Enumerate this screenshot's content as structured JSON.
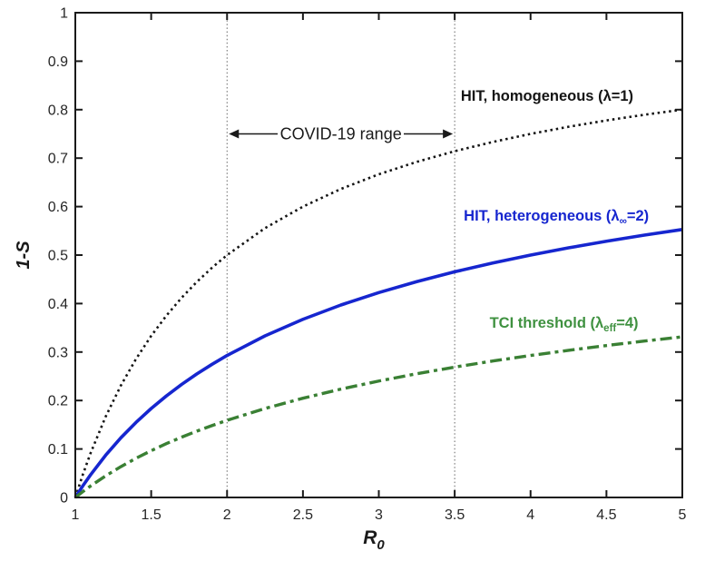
{
  "chart_data": {
    "type": "line",
    "title": "",
    "xlabel": "R",
    "xlabel_sub": "0",
    "ylabel": "1-S",
    "xlim": [
      1,
      5
    ],
    "ylim": [
      0,
      1
    ],
    "grid": false,
    "legend_position": "none (inline curve labels)",
    "xticks": [
      1,
      1.5,
      2,
      2.5,
      3,
      3.5,
      4,
      4.5,
      5
    ],
    "xtick_labels": [
      "1",
      "1.5",
      "2",
      "2.5",
      "3",
      "3.5",
      "4",
      "4.5",
      "5"
    ],
    "yticks": [
      0,
      0.1,
      0.2,
      0.3,
      0.4,
      0.5,
      0.6,
      0.7,
      0.8,
      0.9,
      1
    ],
    "ytick_labels": [
      "0",
      "0.1",
      "0.2",
      "0.3",
      "0.4",
      "0.5",
      "0.6",
      "0.7",
      "0.8",
      "0.9",
      "1"
    ],
    "x": [
      1,
      1.05,
      1.1,
      1.2,
      1.3,
      1.4,
      1.5,
      1.6,
      1.7,
      1.8,
      1.9,
      2.0,
      2.25,
      2.5,
      2.75,
      3.0,
      3.25,
      3.5,
      3.75,
      4.0,
      4.25,
      4.5,
      4.75,
      5.0
    ],
    "series": [
      {
        "id": "hit-homogeneous",
        "name": "HIT, homogeneous (λ=1)",
        "color": "#141414",
        "line_style": "dotted",
        "values": [
          0,
          0.0476,
          0.0909,
          0.1667,
          0.2308,
          0.2857,
          0.3333,
          0.375,
          0.4118,
          0.4444,
          0.4737,
          0.5,
          0.5556,
          0.6,
          0.6364,
          0.6667,
          0.6923,
          0.7143,
          0.7333,
          0.75,
          0.7647,
          0.7778,
          0.7895,
          0.8
        ]
      },
      {
        "id": "hit-heterogeneous",
        "name": "HIT, heterogeneous (λ∞=2)",
        "color": "#1626cf",
        "line_style": "solid",
        "values": [
          0,
          0.0241,
          0.0465,
          0.0871,
          0.123,
          0.1548,
          0.1835,
          0.2094,
          0.233,
          0.2546,
          0.2745,
          0.2929,
          0.3333,
          0.3675,
          0.397,
          0.4226,
          0.4453,
          0.4655,
          0.4836,
          0.5,
          0.5149,
          0.5286,
          0.5412,
          0.5528
        ]
      },
      {
        "id": "tci-threshold",
        "name": "TCI threshold (λeff=4)",
        "color": "#3a8034",
        "line_style": "dashdot",
        "values": [
          0,
          0.0121,
          0.0235,
          0.0446,
          0.0635,
          0.0808,
          0.0965,
          0.111,
          0.1243,
          0.1367,
          0.1482,
          0.1591,
          0.1835,
          0.2047,
          0.2235,
          0.2402,
          0.2552,
          0.2689,
          0.2814,
          0.2929,
          0.3035,
          0.3134,
          0.3226,
          0.3313
        ]
      }
    ],
    "reference_lines": {
      "x_values": [
        2,
        3.5
      ],
      "color": "#666666",
      "style": "dotted"
    },
    "annotations": {
      "covid_range": {
        "text": "COVID-19 range",
        "x_from": 2,
        "x_to": 3.5,
        "y": 0.75,
        "color": "#1a1a1a"
      },
      "curve_labels": [
        {
          "id": "hit-homogeneous",
          "pre": "HIT, homogeneous (λ=1)",
          "sub": "",
          "post": "",
          "x": 3.54,
          "y": 0.83,
          "color": "#141414"
        },
        {
          "id": "hit-heterogeneous",
          "pre": "HIT, heterogeneous (λ",
          "sub": "∞",
          "post": "=2)",
          "x": 3.56,
          "y": 0.582,
          "color": "#1626cf"
        },
        {
          "id": "tci-threshold",
          "pre": "TCI threshold (λ",
          "sub": "eff",
          "post": "=4)",
          "x": 3.73,
          "y": 0.361,
          "color": "#3f9140"
        }
      ]
    },
    "axis_color": "#1a1a1a",
    "tick_label_color": "#262626"
  }
}
